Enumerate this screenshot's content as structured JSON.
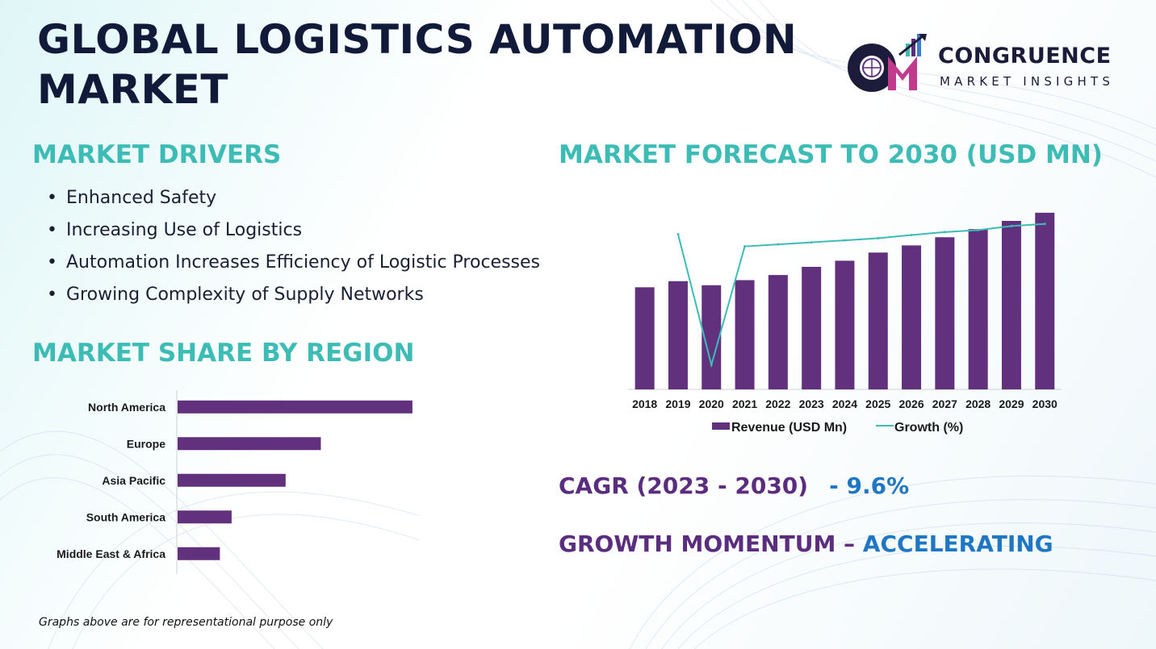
{
  "title": "GLOBAL LOGISTICS AUTOMATION MARKET",
  "logo": {
    "line1": "CONGRUENCE",
    "line2": "MARKET INSIGHTS"
  },
  "drivers": {
    "heading": "MARKET DRIVERS",
    "items": [
      "Enhanced Safety",
      "Increasing Use of Logistics",
      "Automation Increases Efficiency of Logistic Processes",
      "Growing Complexity of Supply Networks"
    ]
  },
  "region_heading": "MARKET SHARE BY REGION",
  "forecast_heading": "MARKET FORECAST TO 2030 (USD MN)",
  "cagr": {
    "label": "CAGR (2023 - 2030)",
    "value": "- 9.6%"
  },
  "momentum": {
    "label": "GROWTH MOMENTUM – ",
    "value": "ACCELERATING"
  },
  "footnote": "Graphs above are for representational purpose only",
  "colors": {
    "bar": "#62317e",
    "line": "#3dbcb6",
    "heading": "#3dbcb6",
    "title": "#121a3a",
    "accent_blue": "#1f77c4"
  },
  "chart_data": [
    {
      "type": "bar",
      "orientation": "horizontal",
      "categories": [
        "North America",
        "Europe",
        "Asia Pacific",
        "South America",
        "Middle East & Africa"
      ],
      "values": [
        100,
        61,
        46,
        23,
        18
      ],
      "title": "",
      "xlabel": "",
      "ylabel": "",
      "xlim": [
        0,
        110
      ],
      "grid": false
    },
    {
      "type": "bar",
      "categories": [
        "2018",
        "2019",
        "2020",
        "2021",
        "2022",
        "2023",
        "2024",
        "2025",
        "2026",
        "2027",
        "2028",
        "2029",
        "2030"
      ],
      "series": [
        {
          "name": "Revenue (USD Mn)",
          "type": "bar",
          "values": [
            100,
            106,
            102,
            107,
            112,
            120,
            126,
            134,
            141,
            149,
            157,
            165,
            173
          ]
        },
        {
          "name": "Growth (%)",
          "type": "line",
          "values": [
            null,
            18,
            -14,
            15,
            15.5,
            16,
            16.5,
            17,
            17.8,
            18.5,
            19,
            20,
            20.5
          ]
        }
      ],
      "ylim": [
        0,
        180
      ],
      "y2lim": [
        -20,
        25
      ],
      "legend": "bottom",
      "grid": false
    }
  ]
}
